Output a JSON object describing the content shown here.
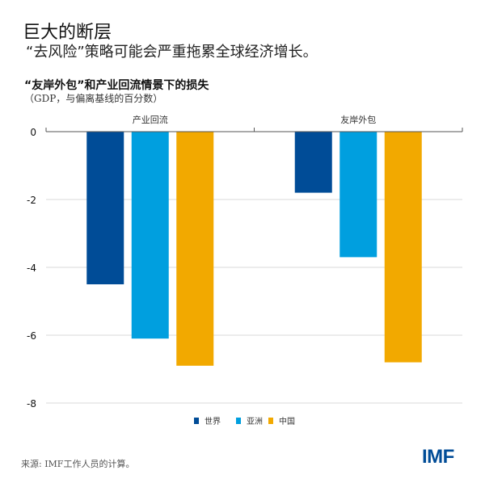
{
  "header": {
    "title": "巨大的断层",
    "subtitle": "“去风险”策略可能会严重拖累全球经济增长。"
  },
  "chart_data": {
    "type": "bar",
    "title": "“友岸外包”和产业回流情景下的损失",
    "subtitle": "（GDP，与偏离基线的百分数）",
    "categories": [
      "产业回流",
      "友岸外包"
    ],
    "series": [
      {
        "name": "世界",
        "color": "#004c97",
        "values": [
          -4.5,
          -1.8
        ]
      },
      {
        "name": "亚洲",
        "color": "#009fdf",
        "values": [
          -6.1,
          -3.7
        ]
      },
      {
        "name": "中国",
        "color": "#f2a900",
        "values": [
          -6.9,
          -6.8
        ]
      }
    ],
    "yticks": [
      0,
      -2,
      -4,
      -6,
      -8
    ],
    "ylim": [
      -8,
      0
    ],
    "grid": true,
    "legend": "bottom"
  },
  "footer": {
    "source": "来源: IMF工作人员的计算。",
    "logo": "IMF"
  }
}
